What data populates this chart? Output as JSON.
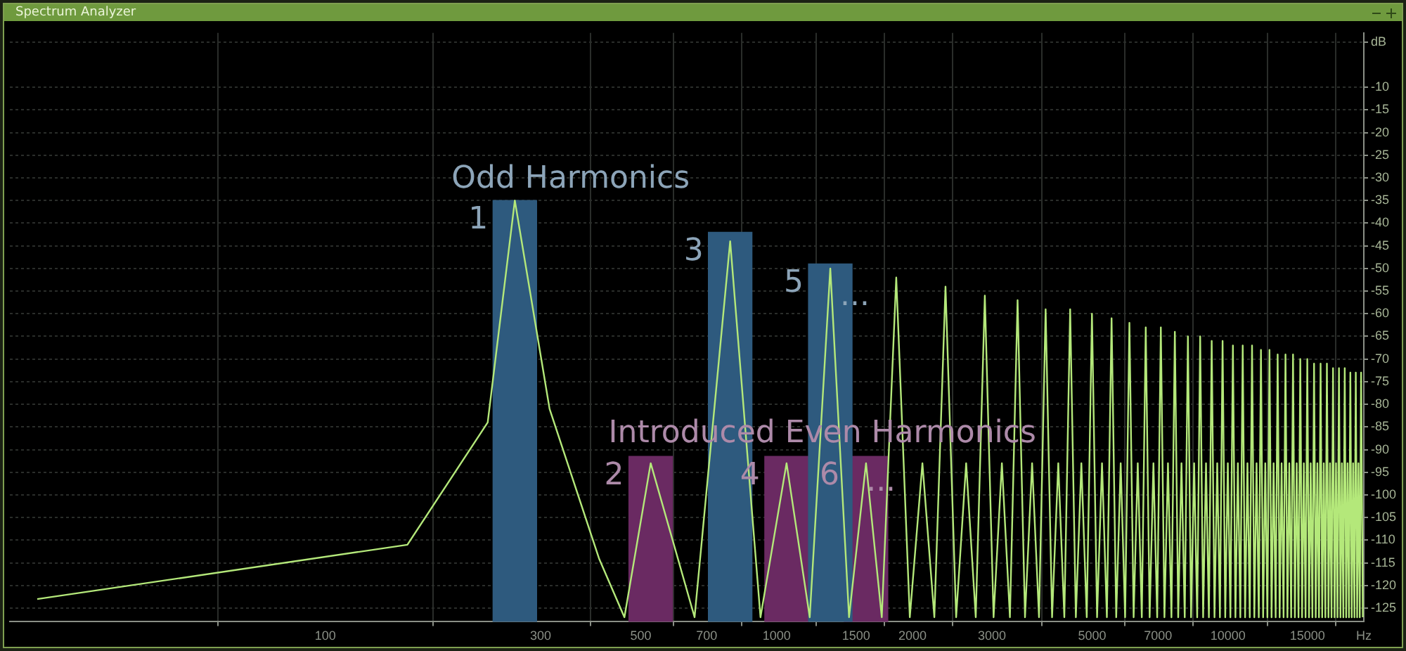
{
  "chart_data": {
    "type": "line",
    "title": "Spectrum Analyzer",
    "xlim": [
      20,
      20000
    ],
    "xticks": [
      100,
      300,
      500,
      700,
      1000,
      1500,
      2000,
      3000,
      5000,
      7000,
      10000,
      15000,
      {
        "value": 20000,
        "label": "Hz"
      }
    ],
    "ylim": [
      -128,
      2
    ],
    "yticks": [
      {
        "value": 0,
        "label": "dB"
      },
      -10,
      -15,
      -20,
      -25,
      -30,
      -35,
      -40,
      -45,
      -50,
      -55,
      -60,
      -65,
      -70,
      -75,
      -80,
      -85,
      -90,
      -95,
      -100,
      -105,
      -110,
      -115,
      -120,
      -125
    ],
    "grid": true,
    "legend": false,
    "log": "x",
    "marker": "none",
    "line_style": "solid",
    "series": [
      {
        "type": "bar",
        "name": "Odd Harmonics",
        "color": "#2e5a7e",
        "x": [
          263,
          789,
          1315
        ],
        "base": [
          -128,
          -128,
          -128
        ],
        "values": [
          93,
          86,
          79
        ]
      },
      {
        "type": "bar",
        "name": "Introduced Even Harmonics",
        "color": "#6a2a62",
        "x": [
          526,
          1052,
          1578
        ],
        "base": [
          -128,
          -128,
          -128
        ],
        "values": [
          36.5,
          36.5,
          36.5
        ]
      },
      {
        "color": "#b4e87a",
        "x": [
          23,
          152,
          229,
          263,
          314,
          404,
          460,
          526,
          658,
          789,
          921,
          1052,
          1184,
          1315,
          1447,
          1578,
          1710,
          1841,
          1973,
          2104,
          2236,
          2367,
          2499,
          2630,
          2762,
          2893,
          3025,
          3156,
          3288,
          3419,
          3551,
          3682,
          3814,
          3945,
          4077,
          4208,
          4340,
          4471,
          4603,
          4734,
          4866,
          4997,
          5129,
          5260,
          5392,
          5523,
          5655,
          5786,
          5918,
          6049,
          6181,
          6312,
          6444,
          6575,
          6707,
          6838,
          6970,
          7101,
          7233,
          7364,
          7496,
          7627,
          7759,
          7890,
          8022,
          8153,
          8285,
          8416,
          8548,
          8679,
          8811,
          8942,
          9074,
          9205,
          9337,
          9468,
          9600,
          9731,
          9863,
          9994,
          10126,
          10257,
          10389,
          10520,
          10652,
          10783,
          10915,
          11046,
          11178,
          11309,
          11441,
          11572,
          11704,
          11835,
          11967,
          12098,
          12230,
          12361,
          12493,
          12624,
          12756,
          12887,
          13019,
          13150,
          13282,
          13413,
          13545,
          13676,
          13808,
          13939,
          14071,
          14202,
          14334,
          14465,
          14597,
          14728,
          14860,
          14991,
          15123,
          15254,
          15386,
          15517,
          15649,
          15780,
          15912,
          16043,
          16175,
          16306,
          16438,
          16569,
          16701,
          16832,
          16964,
          17095,
          17227,
          17358,
          17490,
          17621,
          17753,
          17884,
          18016,
          18147,
          18279,
          18410,
          18542,
          18673,
          18805,
          18936,
          19068,
          19199,
          19331,
          19462,
          19594,
          19725,
          19900
        ],
        "values": [
          -123,
          -111,
          -84,
          -35,
          -81,
          -114,
          -127,
          -93,
          -127,
          -44,
          -127,
          -93,
          -127,
          -50,
          -127,
          -93,
          -127,
          -52,
          -127,
          -93,
          -127,
          -54,
          -127,
          -93,
          -127,
          -56,
          -127,
          -93,
          -127,
          -57,
          -127,
          -93,
          -127,
          -59,
          -127,
          -93,
          -127,
          -59,
          -127,
          -93,
          -127,
          -60,
          -127,
          -93,
          -127,
          -61,
          -127,
          -93,
          -127,
          -62,
          -127,
          -93,
          -127,
          -63,
          -127,
          -93,
          -127,
          -63,
          -127,
          -93,
          -127,
          -64,
          -127,
          -93,
          -127,
          -65,
          -127,
          -93,
          -127,
          -65,
          -127,
          -93,
          -127,
          -66,
          -127,
          -93,
          -127,
          -66,
          -127,
          -93,
          -127,
          -67,
          -127,
          -93,
          -127,
          -67,
          -127,
          -93,
          -127,
          -67,
          -127,
          -93,
          -127,
          -68,
          -127,
          -93,
          -127,
          -68,
          -127,
          -93,
          -127,
          -69,
          -127,
          -93,
          -127,
          -69,
          -127,
          -93,
          -127,
          -69,
          -127,
          -93,
          -127,
          -70,
          -127,
          -93,
          -127,
          -70,
          -127,
          -93,
          -127,
          -71,
          -127,
          -93,
          -127,
          -71,
          -127,
          -93,
          -127,
          -71,
          -127,
          -93,
          -127,
          -72,
          -127,
          -93,
          -127,
          -72,
          -127,
          -93,
          -127,
          -72,
          -127,
          -93,
          -127,
          -73,
          -127,
          -93,
          -127,
          -73,
          -127,
          -93,
          -127,
          -73,
          -127
        ]
      }
    ],
    "annotations": [
      {
        "text": "1",
        "x": 263,
        "y": -35
      },
      {
        "text": "3",
        "x": 789,
        "y": -42
      },
      {
        "text": "5",
        "x": 1315,
        "y": -49
      },
      {
        "text": "...",
        "x": 1841,
        "y": -52
      },
      {
        "text": "2",
        "x": 526,
        "y": -91.5
      },
      {
        "text": "4",
        "x": 1052,
        "y": -91.5
      },
      {
        "text": "6",
        "x": 1578,
        "y": -91.5
      },
      {
        "text": "...",
        "x": 2104,
        "y": -93
      }
    ]
  }
}
